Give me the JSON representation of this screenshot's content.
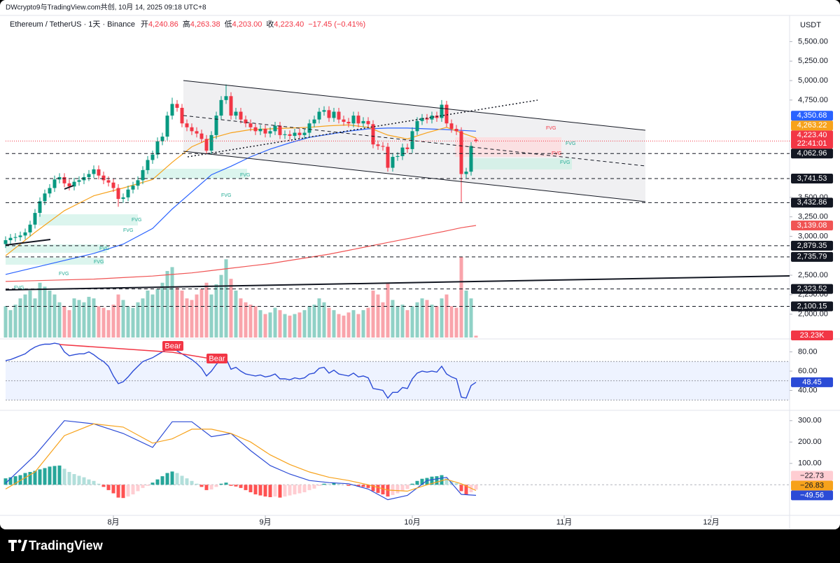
{
  "header": {
    "attribution": "DWcrypto9与TradingView.com共创, 10月 14, 2025 09:18 UTC+8",
    "symbol": "Ethereum / TetherUS · 1天 · Binance",
    "ohlc": [
      {
        "name": "开",
        "value": "4,240.86"
      },
      {
        "name": "高",
        "value": "4,263.38"
      },
      {
        "name": "低",
        "value": "4,203.00"
      },
      {
        "name": "收",
        "value": "4,223.40"
      }
    ],
    "change": "−17.45 (−0.41%)",
    "currency": "USDT"
  },
  "chart_data": [
    {
      "type": "candlestick",
      "up_color": "#089981",
      "down_color": "#f23645",
      "xlim": [
        0,
        160
      ],
      "xticks": [
        {
          "value": 22,
          "label": "8月"
        },
        {
          "value": 53,
          "label": "9月"
        },
        {
          "value": 83,
          "label": "10月"
        },
        {
          "value": 114,
          "label": "11月"
        },
        {
          "value": 144,
          "label": "12月"
        }
      ],
      "ylim": [
        1700,
        5720
      ],
      "yticks": [
        {
          "value": 5500,
          "label": "5,500.00"
        },
        {
          "value": 5250,
          "label": "5,250.00"
        },
        {
          "value": 5000,
          "label": "5,000.00"
        },
        {
          "value": 4750,
          "label": "4,750.00"
        },
        {
          "value": 3500,
          "label": "3,500.00"
        },
        {
          "value": 3250,
          "label": "3,250.00"
        },
        {
          "value": 3000,
          "label": "3,000.00"
        },
        {
          "value": 2500,
          "label": "2,500.00"
        },
        {
          "value": 2250,
          "label": "2,250.00"
        },
        {
          "value": 2000,
          "label": "2,000.00"
        }
      ],
      "open": [
        2900,
        2950,
        2980,
        2990,
        3010,
        3050,
        3150,
        3300,
        3450,
        3550,
        3620,
        3730,
        3760,
        3680,
        3640,
        3700,
        3720,
        3760,
        3800,
        3860,
        3780,
        3720,
        3690,
        3620,
        3480,
        3500,
        3600,
        3650,
        3720,
        3850,
        3980,
        4050,
        4220,
        4280,
        4550,
        4700,
        4650,
        4450,
        4400,
        4350,
        4320,
        4250,
        4100,
        4300,
        4550,
        4750,
        4800,
        4550,
        4600,
        4500,
        4450,
        4400,
        4350,
        4380,
        4320,
        4350,
        4420,
        4300,
        4310,
        4290,
        4330,
        4300,
        4330,
        4450,
        4500,
        4600,
        4620,
        4520,
        4600,
        4500,
        4470,
        4450,
        4550,
        4450,
        4480,
        4440,
        4180,
        4160,
        4150,
        3880,
        4020,
        4030,
        4140,
        4120,
        4350,
        4480,
        4520,
        4500,
        4550,
        4520,
        4690,
        4450,
        4380,
        4350,
        3800,
        3830,
        4240.86
      ],
      "high": [
        3000,
        3030,
        3040,
        3060,
        3100,
        3200,
        3350,
        3500,
        3600,
        3670,
        3780,
        3810,
        3810,
        3730,
        3750,
        3770,
        3810,
        3850,
        3910,
        3910,
        3830,
        3770,
        3740,
        3670,
        3550,
        3650,
        3700,
        3770,
        3900,
        4030,
        4100,
        4270,
        4330,
        4600,
        4780,
        4750,
        4700,
        4500,
        4450,
        4400,
        4370,
        4300,
        4350,
        4600,
        4800,
        4950,
        4850,
        4650,
        4650,
        4550,
        4500,
        4450,
        4430,
        4430,
        4400,
        4470,
        4470,
        4360,
        4360,
        4380,
        4380,
        4380,
        4500,
        4550,
        4650,
        4670,
        4670,
        4650,
        4650,
        4550,
        4520,
        4600,
        4600,
        4530,
        4530,
        4490,
        4230,
        4210,
        4200,
        4070,
        4080,
        4190,
        4190,
        4400,
        4530,
        4570,
        4570,
        4600,
        4600,
        4750,
        4740,
        4500,
        4430,
        4400,
        3880,
        4210,
        4263.38
      ],
      "low": [
        2850,
        2900,
        2930,
        2940,
        2960,
        3000,
        3100,
        3250,
        3400,
        3500,
        3570,
        3680,
        3630,
        3590,
        3590,
        3650,
        3670,
        3710,
        3750,
        3730,
        3670,
        3640,
        3570,
        3380,
        3430,
        3450,
        3550,
        3600,
        3670,
        3800,
        3930,
        4000,
        4170,
        4230,
        4500,
        4600,
        4400,
        4350,
        4300,
        4270,
        4200,
        4060,
        4050,
        4250,
        4500,
        4700,
        4500,
        4500,
        4450,
        4400,
        4350,
        4300,
        4300,
        4270,
        4270,
        4300,
        4250,
        4250,
        4240,
        4240,
        4250,
        4250,
        4280,
        4400,
        4450,
        4550,
        4470,
        4470,
        4450,
        4420,
        4400,
        4400,
        4400,
        4400,
        4390,
        4130,
        4110,
        4100,
        3830,
        3830,
        3970,
        3980,
        4070,
        4070,
        4300,
        4430,
        4450,
        4450,
        4470,
        4470,
        4400,
        4330,
        4300,
        3440,
        3750,
        3780,
        4203
      ],
      "close": [
        2950,
        2980,
        2990,
        3010,
        3050,
        3150,
        3300,
        3450,
        3550,
        3620,
        3730,
        3760,
        3680,
        3640,
        3700,
        3720,
        3760,
        3800,
        3860,
        3780,
        3720,
        3690,
        3620,
        3480,
        3500,
        3600,
        3650,
        3720,
        3850,
        3980,
        4050,
        4220,
        4280,
        4550,
        4700,
        4650,
        4450,
        4400,
        4350,
        4320,
        4250,
        4100,
        4300,
        4550,
        4750,
        4800,
        4550,
        4600,
        4500,
        4450,
        4400,
        4350,
        4380,
        4320,
        4350,
        4420,
        4300,
        4310,
        4290,
        4330,
        4300,
        4330,
        4450,
        4500,
        4600,
        4620,
        4520,
        4600,
        4500,
        4470,
        4450,
        4550,
        4450,
        4480,
        4440,
        4180,
        4160,
        4150,
        3880,
        4020,
        4030,
        4140,
        4120,
        4350,
        4480,
        4520,
        4500,
        4550,
        4520,
        4690,
        4450,
        4380,
        4350,
        3800,
        3830,
        4160,
        4223.4
      ],
      "volume": {
        "ylim": [
          0,
          4000
        ],
        "last_label": "23.23K",
        "values": [
          400,
          350,
          420,
          500,
          550,
          600,
          500,
          700,
          650,
          600,
          550,
          450,
          400,
          350,
          500,
          480,
          450,
          520,
          500,
          400,
          380,
          350,
          420,
          550,
          480,
          400,
          380,
          450,
          500,
          600,
          550,
          620,
          700,
          850,
          900,
          650,
          600,
          500,
          480,
          550,
          620,
          700,
          550,
          680,
          800,
          1000,
          750,
          600,
          500,
          450,
          420,
          400,
          350,
          300,
          320,
          380,
          350,
          300,
          280,
          300,
          320,
          350,
          400,
          420,
          500,
          450,
          380,
          350,
          300,
          280,
          320,
          350,
          300,
          350,
          380,
          600,
          550,
          450,
          700,
          480,
          400,
          420,
          350,
          400,
          450,
          500,
          480,
          420,
          400,
          500,
          550,
          400,
          380,
          1030,
          600,
          500,
          23.23
        ]
      },
      "series": [
        {
          "color": "#2962ff",
          "last_label": "4,350.68",
          "x": [
            0,
            6,
            12,
            18,
            24,
            30,
            34,
            38,
            42,
            46,
            50,
            54,
            58,
            62,
            66,
            70,
            74,
            78,
            82,
            86,
            90,
            93,
            96
          ],
          "values": [
            2510,
            2600,
            2690,
            2780,
            2900,
            3100,
            3350,
            3570,
            3790,
            3900,
            4020,
            4120,
            4200,
            4270,
            4310,
            4350,
            4380,
            4390,
            4390,
            4380,
            4370,
            4360,
            4350.68
          ]
        },
        {
          "color": "#f7a21b",
          "last_label": "4,263.22",
          "x": [
            0,
            6,
            12,
            18,
            24,
            30,
            34,
            38,
            42,
            46,
            50,
            54,
            58,
            62,
            66,
            70,
            74,
            78,
            82,
            86,
            90,
            93,
            96
          ],
          "values": [
            2750,
            3050,
            3330,
            3520,
            3620,
            3730,
            3950,
            4150,
            4260,
            4330,
            4370,
            4380,
            4390,
            4400,
            4420,
            4430,
            4400,
            4300,
            4250,
            4330,
            4400,
            4330,
            4263.22
          ]
        },
        {
          "color": "#f05454",
          "last_label": "3,139.08",
          "x": [
            0,
            6,
            12,
            18,
            24,
            30,
            34,
            38,
            42,
            46,
            50,
            54,
            58,
            62,
            66,
            70,
            74,
            78,
            82,
            86,
            90,
            93,
            96
          ],
          "values": [
            2420,
            2430,
            2440,
            2450,
            2470,
            2490,
            2510,
            2530,
            2560,
            2590,
            2620,
            2650,
            2690,
            2730,
            2770,
            2820,
            2870,
            2920,
            2970,
            3020,
            3070,
            3110,
            3139.08
          ]
        }
      ],
      "levels": [
        {
          "value": 4062.96,
          "label": "4,062.96"
        },
        {
          "value": 3741.53,
          "label": "3,741.53"
        },
        {
          "value": 3432.86,
          "label": "3,432.86"
        },
        {
          "value": 2879.35,
          "label": "2,879.35"
        },
        {
          "value": 2735.79,
          "label": "2,735.79"
        },
        {
          "value": 2323.52,
          "label": "2,323.52"
        },
        {
          "value": 2100.15,
          "label": "2,100.15"
        }
      ],
      "last_price": {
        "value": 4223.4,
        "label": "4,223.40",
        "countdown": "22:41:01"
      },
      "fvg_labels": [
        "FVG",
        "FVG",
        "FVG",
        "FVG",
        "FVG",
        "FVG",
        "FVG",
        "FVG",
        "FVG",
        "FVG",
        "FVG",
        "FVG"
      ]
    },
    {
      "type": "line",
      "xlim": [
        0,
        160
      ],
      "ylim": [
        20,
        92
      ],
      "yticks": [
        {
          "value": 80,
          "label": "80.00"
        },
        {
          "value": 60,
          "label": "60.00"
        },
        {
          "value": 40,
          "label": "40.00"
        }
      ],
      "band": [
        30,
        70
      ],
      "midline": 50,
      "last_label": "48.45",
      "annotations": [
        "Bear",
        "Bear"
      ],
      "series": [
        {
          "color": "#2b4bd6",
          "values": [
            71,
            72,
            74,
            76,
            78,
            82,
            85,
            87,
            88,
            88,
            89,
            88,
            80,
            76,
            77,
            78,
            78,
            80,
            77,
            73,
            70,
            65,
            55,
            47,
            49,
            54,
            60,
            65,
            70,
            72,
            74,
            77,
            80,
            83,
            85,
            81,
            78,
            75,
            72,
            68,
            63,
            55,
            60,
            67,
            72,
            73,
            62,
            64,
            60,
            57,
            56,
            55,
            56,
            54,
            55,
            57,
            52,
            52,
            51,
            53,
            52,
            53,
            57,
            58,
            63,
            64,
            58,
            61,
            57,
            56,
            55,
            58,
            54,
            55,
            53,
            42,
            41,
            40,
            32,
            38,
            38,
            43,
            42,
            52,
            58,
            60,
            59,
            60,
            59,
            65,
            57,
            54,
            52,
            33,
            32,
            45,
            48.45
          ]
        }
      ]
    },
    {
      "type": "macd",
      "xlim": [
        0,
        160
      ],
      "ylim": [
        -140,
        345
      ],
      "yticks": [
        {
          "value": 300,
          "label": "300.00"
        },
        {
          "value": 200,
          "label": "200.00"
        },
        {
          "value": 100,
          "label": "100.00"
        }
      ],
      "histogram": {
        "last_label": "−22.73",
        "values": [
          30,
          35,
          40,
          45,
          55,
          60,
          65,
          72,
          78,
          85,
          88,
          90,
          75,
          60,
          50,
          42,
          35,
          25,
          18,
          5,
          -10,
          -25,
          -40,
          -60,
          -62,
          -55,
          -45,
          -30,
          -15,
          -5,
          10,
          25,
          40,
          55,
          62,
          55,
          42,
          30,
          18,
          5,
          -10,
          -25,
          -22,
          -10,
          5,
          10,
          -5,
          -8,
          -15,
          -25,
          -35,
          -45,
          -50,
          -55,
          -58,
          -55,
          -60,
          -55,
          -50,
          -45,
          -40,
          -35,
          -25,
          -18,
          -5,
          5,
          3,
          8,
          5,
          0,
          -5,
          0,
          -8,
          -10,
          -15,
          -30,
          -38,
          -45,
          -55,
          -48,
          -40,
          -30,
          -20,
          5,
          18,
          28,
          32,
          38,
          40,
          45,
          30,
          18,
          8,
          -30,
          -45,
          -35,
          -22.73
        ]
      },
      "series": [
        {
          "color": "#2b4bd6",
          "last_label": "−49.56",
          "x": [
            0,
            6,
            12,
            18,
            24,
            30,
            34,
            38,
            42,
            46,
            50,
            54,
            58,
            62,
            66,
            70,
            74,
            78,
            82,
            86,
            90,
            93,
            96
          ],
          "values": [
            7,
            138,
            300,
            285,
            240,
            175,
            295,
            295,
            225,
            240,
            160,
            90,
            50,
            20,
            10,
            5,
            -20,
            -70,
            -50,
            20,
            35,
            -45,
            -49.56
          ]
        },
        {
          "color": "#f7a21b",
          "last_label": "−26.83",
          "x": [
            0,
            6,
            12,
            18,
            24,
            30,
            34,
            38,
            42,
            46,
            50,
            54,
            58,
            62,
            66,
            70,
            74,
            78,
            82,
            86,
            90,
            93,
            96
          ],
          "values": [
            -20,
            60,
            230,
            285,
            270,
            195,
            215,
            260,
            260,
            240,
            200,
            140,
            95,
            60,
            35,
            20,
            0,
            -25,
            -30,
            0,
            25,
            5,
            -26.83
          ]
        }
      ]
    }
  ],
  "footer": {
    "logo": "TradingView"
  }
}
